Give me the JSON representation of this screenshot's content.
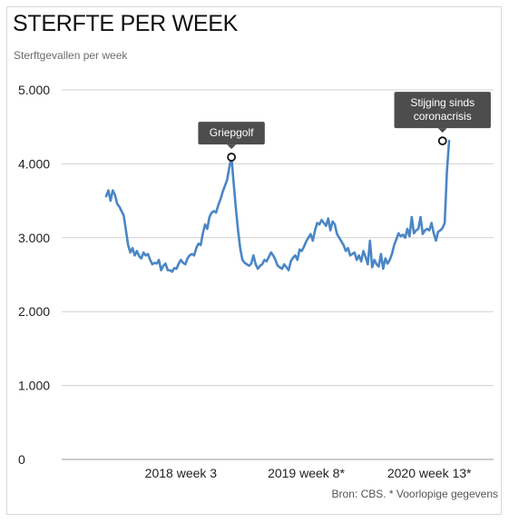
{
  "header": {
    "title": "STERFTE PER WEEK",
    "subtitle": "Sterftgevallen per week"
  },
  "footer": {
    "source": "Bron: CBS. * Voorlopige gegevens"
  },
  "colors": {
    "line": "#4a86c5",
    "grid": "#d0d0d0",
    "annotation_bg": "#4d4d4d"
  },
  "chart_data": {
    "type": "line",
    "title": "STERFTE PER WEEK",
    "subtitle": "Sterftgevallen per week",
    "xlabel": "",
    "ylabel": "Sterftgevallen per week",
    "ylim": [
      0,
      5000
    ],
    "yticks": [
      0,
      1000,
      2000,
      3000,
      4000,
      5000
    ],
    "ytick_labels": [
      "0",
      "1.000",
      "2.000",
      "3.000",
      "4.000",
      "5.000"
    ],
    "xticks": [
      {
        "index": 34,
        "label": "2018 week 3"
      },
      {
        "index": 91,
        "label": "2019 week 8*"
      },
      {
        "index": 147,
        "label": "2020 week 13*"
      }
    ],
    "grid": true,
    "series": [
      {
        "values": [
          3560,
          3640,
          3500,
          3640,
          3580,
          3460,
          3420,
          3360,
          3300,
          3100,
          2900,
          2800,
          2860,
          2760,
          2820,
          2750,
          2720,
          2800,
          2760,
          2780,
          2700,
          2640,
          2660,
          2650,
          2700,
          2560,
          2620,
          2650,
          2560,
          2560,
          2540,
          2590,
          2580,
          2650,
          2700,
          2660,
          2640,
          2720,
          2760,
          2780,
          2760,
          2860,
          2920,
          2900,
          3060,
          3180,
          3120,
          3280,
          3340,
          3360,
          3340,
          3440,
          3520,
          3620,
          3700,
          3780,
          3950,
          4090,
          3740,
          3400,
          3100,
          2850,
          2700,
          2660,
          2640,
          2620,
          2650,
          2760,
          2640,
          2580,
          2620,
          2640,
          2700,
          2680,
          2740,
          2800,
          2760,
          2700,
          2620,
          2600,
          2580,
          2640,
          2600,
          2560,
          2680,
          2730,
          2760,
          2700,
          2840,
          2820,
          2880,
          2950,
          3000,
          3050,
          2960,
          3100,
          3200,
          3180,
          3240,
          3200,
          3160,
          3260,
          3100,
          3220,
          3180,
          3050,
          3000,
          2950,
          2900,
          2820,
          2860,
          2760,
          2780,
          2800,
          2700,
          2760,
          2680,
          2820,
          2740,
          2640,
          2960,
          2600,
          2700,
          2640,
          2610,
          2780,
          2580,
          2720,
          2650,
          2700,
          2780,
          2900,
          2980,
          3060,
          3020,
          3040,
          3000,
          3120,
          3020,
          3280,
          3060,
          3100,
          3120,
          3280,
          3050,
          3100,
          3120,
          3100,
          3200,
          3060,
          2960,
          3080,
          3100,
          3130,
          3200,
          3900,
          4310
        ]
      }
    ],
    "annotations": [
      {
        "index": 57,
        "value": 4090,
        "label": "Griepgolf"
      },
      {
        "index": 153,
        "value": 4310,
        "label": "Stijging sinds coronacrisis"
      }
    ]
  }
}
